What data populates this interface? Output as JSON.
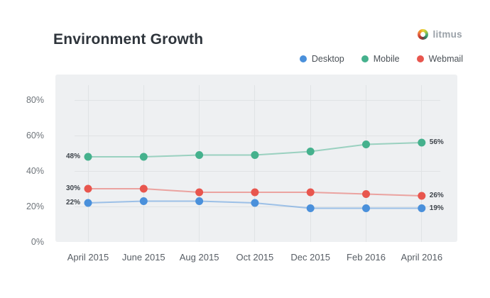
{
  "header": {
    "title": "Environment Growth",
    "brand": "litmus"
  },
  "chart_data": {
    "type": "line",
    "title": "Environment Growth",
    "categories": [
      "April 2015",
      "June 2015",
      "Aug 2015",
      "Oct 2015",
      "Dec 2015",
      "Feb 2016",
      "April 2016"
    ],
    "series": [
      {
        "name": "Desktop",
        "color": "#4a90db",
        "line_color": "rgba(74,144,219,0.5)",
        "values": [
          22,
          23,
          23,
          22,
          19,
          19,
          19
        ],
        "start_label": "22%",
        "end_label": "19%"
      },
      {
        "name": "Mobile",
        "color": "#45b18d",
        "line_color": "rgba(69,177,141,0.5)",
        "values": [
          48,
          48,
          49,
          49,
          51,
          55,
          56
        ],
        "start_label": "48%",
        "end_label": "56%"
      },
      {
        "name": "Webmail",
        "color": "#e8564e",
        "line_color": "rgba(232,86,78,0.5)",
        "values": [
          30,
          30,
          28,
          28,
          28,
          27,
          26
        ],
        "start_label": "30%",
        "end_label": "26%"
      }
    ],
    "y_ticks": [
      {
        "label": "80%",
        "value": 80
      },
      {
        "label": "60%",
        "value": 60
      },
      {
        "label": "40%",
        "value": 40
      },
      {
        "label": "20%",
        "value": 20
      },
      {
        "label": "0%",
        "value": 0
      }
    ],
    "ylim": [
      0,
      94
    ],
    "grid": true,
    "legend_position": "top-right",
    "plot_background": "#eef0f2",
    "grid_color": "#e0e3e5"
  }
}
